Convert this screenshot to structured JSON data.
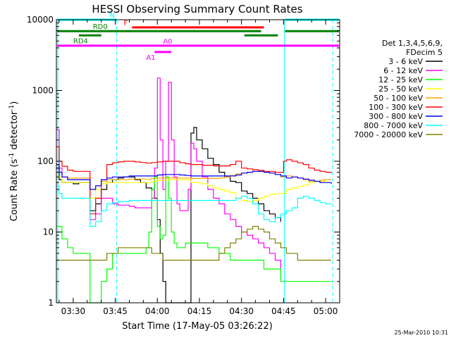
{
  "chart_data": {
    "type": "line",
    "title": "HESSI Observing Summary Count Rates",
    "xlabel": "Start Time (17-May-05 03:26:22)",
    "ylabel_main": "Count Rate (s",
    "ylabel_sup1": "-1",
    "ylabel_mid": " detector",
    "ylabel_sup2": "-1",
    "ylabel_end": ")",
    "y_scale": "log",
    "ylim": [
      1,
      10000
    ],
    "xlim_minutes": [
      -2,
      99
    ],
    "x_ticks": [
      {
        "minute": 4,
        "label": "03:30"
      },
      {
        "minute": 19,
        "label": "03:45"
      },
      {
        "minute": 34,
        "label": "04:00"
      },
      {
        "minute": 49,
        "label": "04:15"
      },
      {
        "minute": 64,
        "label": "04:30"
      },
      {
        "minute": 79,
        "label": "04:45"
      },
      {
        "minute": 94,
        "label": "05:00"
      }
    ],
    "y_ticks": [
      {
        "value": 1,
        "label": "1"
      },
      {
        "value": 10,
        "label": "10"
      },
      {
        "value": 100,
        "label": "100"
      },
      {
        "value": 1000,
        "label": "1000"
      },
      {
        "value": 10000,
        "label": "10000"
      }
    ],
    "legend_header": [
      "Det 1,3,4,5,6,9,",
      "FDecim 5"
    ],
    "legend_position": "right",
    "timestamp": "25-Mar-2010 10:31",
    "series": [
      {
        "name": "3 - 6 keV",
        "color": "#000000",
        "x": [
          -2,
          -1,
          0,
          2,
          4,
          6,
          8,
          9,
          10,
          12,
          14,
          16,
          18,
          20,
          22,
          24,
          26,
          28,
          30,
          32,
          33,
          34,
          35,
          36,
          37,
          38,
          39,
          40,
          42,
          44,
          45,
          46,
          47,
          48,
          50,
          52,
          54,
          56,
          58,
          60,
          62,
          64,
          66,
          68,
          70,
          72,
          74,
          76,
          78
        ],
        "y": [
          80,
          55,
          50,
          50,
          48,
          50,
          50,
          50,
          20,
          25,
          40,
          50,
          55,
          58,
          60,
          60,
          55,
          50,
          42,
          40,
          30,
          15,
          5,
          2,
          1,
          1,
          1,
          1,
          1,
          1,
          1,
          250,
          300,
          200,
          150,
          110,
          90,
          70,
          60,
          52,
          50,
          38,
          35,
          30,
          25,
          20,
          18,
          16,
          14
        ]
      },
      {
        "name": "6 - 12 keV",
        "color": "#ff00ff",
        "x": [
          -2,
          -1,
          0,
          2,
          4,
          6,
          8,
          9,
          10,
          12,
          14,
          16,
          18,
          20,
          22,
          24,
          26,
          28,
          30,
          32,
          33,
          34,
          35,
          36,
          37,
          38,
          39,
          40,
          41,
          42,
          44,
          45,
          46,
          47,
          48,
          50,
          52,
          54,
          56,
          58,
          60,
          62,
          64,
          66,
          68,
          70,
          72,
          74,
          76,
          78
        ],
        "y": [
          280,
          80,
          60,
          55,
          55,
          55,
          55,
          55,
          15,
          18,
          30,
          30,
          25,
          24,
          24,
          23,
          22,
          22,
          22,
          30,
          80,
          1500,
          200,
          40,
          100,
          1300,
          200,
          60,
          25,
          20,
          20,
          40,
          180,
          150,
          100,
          60,
          40,
          30,
          25,
          18,
          15,
          12,
          10,
          9,
          8,
          7,
          6,
          5,
          4,
          3
        ]
      },
      {
        "name": "12 - 25 keV",
        "color": "#00ff00",
        "x": [
          -2,
          0,
          2,
          4,
          6,
          8,
          9,
          10,
          12,
          14,
          16,
          18,
          20,
          22,
          24,
          26,
          28,
          30,
          31,
          32,
          33,
          34,
          35,
          36,
          37,
          38,
          39,
          40,
          41,
          42,
          44,
          46,
          48,
          50,
          52,
          54,
          56,
          58,
          60,
          62,
          64,
          66,
          68,
          70,
          72,
          74,
          76,
          78,
          80,
          84,
          88,
          92,
          96
        ],
        "y": [
          12,
          8,
          6,
          5,
          5,
          5,
          5,
          1,
          1,
          2,
          3,
          5,
          5,
          5,
          5,
          5,
          5,
          6,
          10,
          40,
          60,
          12,
          8,
          9,
          60,
          30,
          10,
          7,
          6,
          6,
          7,
          7,
          7,
          7,
          6,
          6,
          5,
          5,
          4,
          4,
          4,
          4,
          4,
          4,
          3,
          3,
          3,
          2,
          2,
          2,
          2,
          2,
          2
        ]
      },
      {
        "name": "25 - 50 keV",
        "color": "#ffff00",
        "x": [
          -2,
          0,
          2,
          4,
          6,
          8,
          10,
          12,
          14,
          16,
          18,
          20,
          22,
          24,
          26,
          28,
          30,
          32,
          34,
          36,
          38,
          40,
          42,
          44,
          46,
          48,
          50,
          52,
          54,
          56,
          58,
          60,
          62,
          64,
          66,
          68,
          70,
          72,
          74,
          76,
          78,
          80,
          82,
          84,
          86,
          88,
          90,
          92,
          94,
          96
        ],
        "y": [
          60,
          50,
          50,
          50,
          50,
          50,
          30,
          40,
          48,
          50,
          50,
          50,
          50,
          50,
          50,
          50,
          50,
          52,
          54,
          54,
          55,
          55,
          55,
          55,
          50,
          50,
          48,
          45,
          42,
          40,
          38,
          36,
          30,
          28,
          27,
          28,
          30,
          32,
          34,
          35,
          35,
          40,
          42,
          44,
          46,
          50,
          52,
          52,
          50,
          48
        ]
      },
      {
        "name": "50 - 100 keV",
        "color": "#ffa500",
        "x": [
          -2,
          0,
          2,
          4,
          6,
          8,
          10,
          12,
          14,
          16,
          18,
          20,
          22,
          24,
          26,
          28,
          30,
          32,
          34,
          36,
          38,
          40,
          42,
          44,
          46,
          48,
          50,
          52,
          54,
          56,
          58,
          60,
          62,
          64,
          66,
          68,
          70,
          72,
          74,
          76,
          78,
          80,
          82,
          84,
          86,
          88,
          90,
          92,
          94,
          96
        ],
        "y": [
          70,
          60,
          58,
          58,
          58,
          58,
          40,
          45,
          52,
          55,
          55,
          55,
          55,
          56,
          56,
          56,
          56,
          57,
          58,
          58,
          58,
          58,
          58,
          58,
          57,
          57,
          57,
          57,
          57,
          58,
          60,
          63,
          66,
          68,
          70,
          72,
          72,
          70,
          68,
          65,
          60,
          62,
          60,
          58,
          55,
          52,
          52,
          54,
          55,
          55
        ]
      },
      {
        "name": "100 - 300 keV",
        "color": "#ff0000",
        "x": [
          -2,
          -1,
          0,
          2,
          4,
          6,
          8,
          9,
          10,
          12,
          14,
          16,
          18,
          20,
          22,
          24,
          26,
          28,
          30,
          32,
          34,
          36,
          38,
          40,
          42,
          44,
          46,
          48,
          50,
          52,
          54,
          56,
          58,
          60,
          62,
          64,
          66,
          68,
          70,
          72,
          74,
          76,
          78,
          79,
          80,
          82,
          84,
          86,
          88,
          90,
          92,
          94,
          96
        ],
        "y": [
          160,
          100,
          85,
          75,
          72,
          72,
          72,
          72,
          18,
          30,
          55,
          90,
          95,
          98,
          100,
          100,
          98,
          96,
          94,
          96,
          98,
          100,
          100,
          100,
          95,
          92,
          90,
          90,
          88,
          88,
          86,
          86,
          86,
          90,
          100,
          80,
          78,
          76,
          74,
          72,
          72,
          70,
          70,
          100,
          105,
          100,
          95,
          90,
          80,
          75,
          72,
          70,
          68
        ]
      },
      {
        "name": "300 - 800 keV",
        "color": "#0000ff",
        "x": [
          -2,
          -1,
          0,
          2,
          4,
          6,
          8,
          9,
          10,
          12,
          14,
          16,
          18,
          20,
          22,
          24,
          26,
          28,
          30,
          32,
          34,
          36,
          38,
          40,
          42,
          44,
          46,
          48,
          50,
          52,
          54,
          56,
          58,
          60,
          62,
          64,
          66,
          68,
          70,
          72,
          74,
          76,
          78,
          80,
          82,
          84,
          86,
          88,
          90,
          92,
          94,
          96
        ],
        "y": [
          90,
          70,
          60,
          55,
          55,
          55,
          55,
          55,
          40,
          45,
          55,
          58,
          60,
          60,
          60,
          62,
          62,
          62,
          62,
          62,
          64,
          65,
          65,
          65,
          64,
          63,
          62,
          62,
          62,
          62,
          62,
          62,
          62,
          62,
          64,
          68,
          70,
          72,
          72,
          70,
          68,
          65,
          62,
          58,
          60,
          58,
          56,
          54,
          52,
          50,
          50,
          48
        ]
      },
      {
        "name": "800 - 7000 keV",
        "color": "#00ffff",
        "x": [
          -2,
          -1,
          0,
          2,
          4,
          6,
          8,
          9,
          10,
          12,
          14,
          16,
          18,
          20,
          22,
          24,
          26,
          28,
          30,
          32,
          34,
          36,
          38,
          40,
          42,
          44,
          46,
          48,
          50,
          52,
          54,
          56,
          58,
          60,
          62,
          64,
          66,
          68,
          70,
          72,
          74,
          76,
          78,
          80,
          82,
          84,
          86,
          88,
          90,
          92,
          94,
          96
        ],
        "y": [
          45,
          35,
          30,
          30,
          30,
          30,
          30,
          30,
          12,
          14,
          20,
          25,
          26,
          27,
          27,
          28,
          28,
          28,
          28,
          28,
          28,
          28,
          28,
          28,
          28,
          28,
          28,
          28,
          28,
          28,
          28,
          28,
          28,
          28,
          30,
          32,
          30,
          25,
          18,
          15,
          14,
          16,
          18,
          20,
          22,
          30,
          32,
          30,
          28,
          26,
          25,
          25
        ]
      },
      {
        "name": "7000 - 20000 keV",
        "color": "#808000",
        "x": [
          -2,
          0,
          2,
          4,
          6,
          8,
          10,
          12,
          14,
          16,
          18,
          20,
          22,
          24,
          26,
          28,
          30,
          32,
          34,
          36,
          38,
          40,
          42,
          44,
          46,
          48,
          50,
          52,
          54,
          56,
          58,
          60,
          62,
          64,
          66,
          68,
          70,
          72,
          74,
          76,
          78,
          80,
          82,
          84,
          86,
          88,
          90,
          92,
          94,
          96
        ],
        "y": [
          4,
          4,
          4,
          4,
          4,
          4,
          4,
          4,
          4,
          5,
          5,
          6,
          6,
          6,
          6,
          6,
          6,
          5,
          5,
          4,
          4,
          4,
          4,
          4,
          4,
          4,
          4,
          4,
          4,
          5,
          6,
          7,
          8,
          10,
          11,
          12,
          11,
          10,
          8,
          7,
          6,
          5,
          5,
          4,
          4,
          4,
          4,
          4,
          4,
          4
        ]
      }
    ],
    "vertical_lines": [
      {
        "minute": -1.5,
        "style": "solid",
        "color": "#00ffff"
      },
      {
        "minute": 19.5,
        "style": "dashed",
        "color": "#00ffff"
      },
      {
        "minute": 79.3,
        "style": "solid",
        "color": "#00ffff"
      },
      {
        "minute": 96.5,
        "style": "dashed",
        "color": "#00ffff"
      }
    ],
    "flag_bars": [
      {
        "label": "N",
        "color": "#00ffff",
        "y": 10000,
        "segments": [
          [
            -2,
            19.5
          ],
          [
            79.5,
            99
          ]
        ],
        "label_at": 17
      },
      {
        "label": "F",
        "color": "#ff0000",
        "y": 7800,
        "segments": [
          [
            25,
            72
          ]
        ],
        "label_at": 22
      },
      {
        "label": "RD0",
        "color": "#008000",
        "y": 6900,
        "segments": [
          [
            -2,
            71
          ],
          [
            79.5,
            99
          ]
        ],
        "label_at": 11
      },
      {
        "label": "RD4",
        "color": "#008000",
        "y": 6000,
        "segments": [
          [
            6,
            14
          ],
          [
            65,
            77
          ]
        ],
        "label_at": 4
      },
      {
        "label": "A0",
        "color": "#ff00ff",
        "y": 4300,
        "segments": [
          [
            -2,
            99
          ]
        ],
        "label_at": 36
      },
      {
        "label": "A1",
        "color": "#ff00ff",
        "y": 3500,
        "segments": [
          [
            33,
            39
          ]
        ],
        "label_at": 30
      }
    ]
  }
}
